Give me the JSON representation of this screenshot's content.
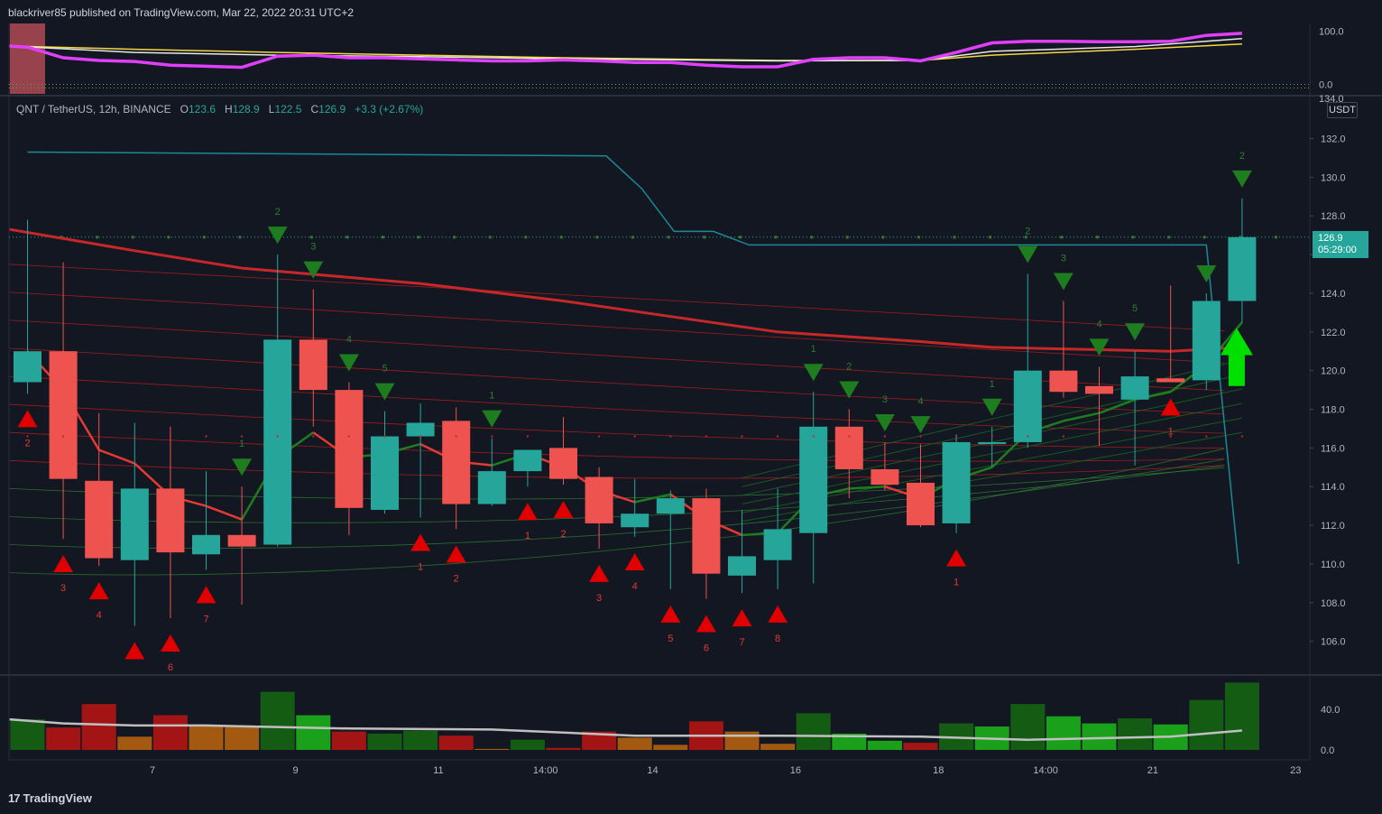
{
  "header": {
    "published": "blackriver85 published on TradingView.com, Mar 22, 2022 20:31 UTC+2"
  },
  "legend": {
    "symbol": "QNT / TetherUS, 12h, BINANCE",
    "o_label": "O",
    "o": "123.6",
    "h_label": "H",
    "h": "128.9",
    "l_label": "L",
    "l": "122.5",
    "c_label": "C",
    "c": "126.9",
    "change": "+3.3 (+2.67%)"
  },
  "currency_button": "USDT",
  "last_price": {
    "price": "126.9",
    "countdown": "05:29:00"
  },
  "branding": {
    "logo_text": "TradingView"
  },
  "colors": {
    "background": "#131722",
    "up": "#26a69a",
    "down": "#ef5350",
    "signal_up": "#1e7d1e",
    "signal_down": "#e00000"
  },
  "chart_data": {
    "type": "candlestick",
    "symbol": "QNT/USDT",
    "timeframe": "12h",
    "x_tick_labels": [
      {
        "i": 3.5,
        "label": "7"
      },
      {
        "i": 7.5,
        "label": "9"
      },
      {
        "i": 11.5,
        "label": "11"
      },
      {
        "i": 14.5,
        "label": "14:00"
      },
      {
        "i": 17.5,
        "label": "14"
      },
      {
        "i": 21.5,
        "label": "16"
      },
      {
        "i": 25.5,
        "label": "18"
      },
      {
        "i": 28.5,
        "label": "14:00"
      },
      {
        "i": 31.5,
        "label": "21"
      },
      {
        "i": 35.5,
        "label": "23"
      }
    ],
    "price_axis": {
      "ylim": [
        104.2,
        134.6
      ],
      "ticks": [
        "106.0",
        "108.0",
        "110.0",
        "112.0",
        "114.0",
        "116.0",
        "118.0",
        "120.0",
        "122.0",
        "124.0",
        "126.0",
        "128.0",
        "130.0",
        "132.0",
        "134.0"
      ]
    },
    "candles": [
      {
        "o": 119.4,
        "h": 127.8,
        "l": 118.8,
        "c": 121.0
      },
      {
        "o": 121.0,
        "h": 125.6,
        "l": 111.3,
        "c": 114.4
      },
      {
        "o": 114.3,
        "h": 117.8,
        "l": 109.9,
        "c": 110.3
      },
      {
        "o": 110.2,
        "h": 117.3,
        "l": 106.8,
        "c": 113.9
      },
      {
        "o": 113.9,
        "h": 117.1,
        "l": 107.2,
        "c": 110.6
      },
      {
        "o": 110.5,
        "h": 114.8,
        "l": 109.7,
        "c": 111.5
      },
      {
        "o": 111.5,
        "h": 114.0,
        "l": 107.9,
        "c": 110.9
      },
      {
        "o": 111.0,
        "h": 126.0,
        "l": 110.9,
        "c": 121.6
      },
      {
        "o": 121.6,
        "h": 124.2,
        "l": 117.1,
        "c": 119.0
      },
      {
        "o": 119.0,
        "h": 119.4,
        "l": 111.5,
        "c": 112.9
      },
      {
        "o": 112.8,
        "h": 117.9,
        "l": 112.6,
        "c": 116.6
      },
      {
        "o": 116.6,
        "h": 118.3,
        "l": 112.4,
        "c": 117.3
      },
      {
        "o": 117.4,
        "h": 118.1,
        "l": 111.8,
        "c": 113.1
      },
      {
        "o": 113.1,
        "h": 116.5,
        "l": 113.0,
        "c": 114.8
      },
      {
        "o": 114.8,
        "h": 115.9,
        "l": 114.0,
        "c": 115.9
      },
      {
        "o": 116.0,
        "h": 117.6,
        "l": 114.1,
        "c": 114.4
      },
      {
        "o": 114.5,
        "h": 115.0,
        "l": 110.8,
        "c": 112.1
      },
      {
        "o": 111.9,
        "h": 114.4,
        "l": 111.4,
        "c": 112.6
      },
      {
        "o": 112.6,
        "h": 113.8,
        "l": 108.7,
        "c": 113.4
      },
      {
        "o": 113.4,
        "h": 113.9,
        "l": 108.2,
        "c": 109.5
      },
      {
        "o": 109.4,
        "h": 112.8,
        "l": 108.5,
        "c": 110.4
      },
      {
        "o": 110.2,
        "h": 113.9,
        "l": 108.7,
        "c": 111.8
      },
      {
        "o": 111.6,
        "h": 118.9,
        "l": 109.0,
        "c": 117.1
      },
      {
        "o": 117.1,
        "h": 118.0,
        "l": 113.4,
        "c": 114.9
      },
      {
        "o": 114.9,
        "h": 116.3,
        "l": 113.8,
        "c": 114.1
      },
      {
        "o": 114.2,
        "h": 116.2,
        "l": 111.9,
        "c": 112.0
      },
      {
        "o": 112.1,
        "h": 116.7,
        "l": 111.6,
        "c": 116.3
      },
      {
        "o": 116.2,
        "h": 117.1,
        "l": 115.0,
        "c": 116.3
      },
      {
        "o": 116.3,
        "h": 125.0,
        "l": 116.0,
        "c": 120.0
      },
      {
        "o": 120.0,
        "h": 123.6,
        "l": 118.6,
        "c": 118.9
      },
      {
        "o": 119.2,
        "h": 120.2,
        "l": 116.1,
        "c": 118.8
      },
      {
        "o": 118.5,
        "h": 121.0,
        "l": 115.1,
        "c": 119.7
      },
      {
        "o": 119.6,
        "h": 124.4,
        "l": 119.4,
        "c": 119.4
      },
      {
        "o": 119.5,
        "h": 124.0,
        "l": 119.0,
        "c": 123.6
      },
      {
        "o": 123.6,
        "h": 128.9,
        "l": 122.5,
        "c": 126.9
      }
    ],
    "resistance_line": [
      {
        "i": 0,
        "v": 131.3
      },
      {
        "i": 16.2,
        "v": 131.1
      },
      {
        "i": 17.2,
        "v": 129.4
      },
      {
        "i": 18.1,
        "v": 127.2
      },
      {
        "i": 19.2,
        "v": 127.2
      },
      {
        "i": 20.2,
        "v": 126.5
      },
      {
        "i": 33.0,
        "v": 126.5
      },
      {
        "i": 33.9,
        "v": 110.0
      }
    ],
    "red_ma": [
      {
        "i": -0.5,
        "v": 127.3
      },
      {
        "i": 3,
        "v": 126.2
      },
      {
        "i": 6,
        "v": 125.3
      },
      {
        "i": 11,
        "v": 124.5
      },
      {
        "i": 15,
        "v": 123.6
      },
      {
        "i": 18,
        "v": 122.8
      },
      {
        "i": 21,
        "v": 122.0
      },
      {
        "i": 25,
        "v": 121.5
      },
      {
        "i": 27,
        "v": 121.2
      },
      {
        "i": 32,
        "v": 121.0
      },
      {
        "i": 34,
        "v": 121.2
      }
    ],
    "fast_ma": [
      {
        "i": 0,
        "v": 121.0
      },
      {
        "i": 1,
        "v": 119.0
      },
      {
        "i": 2,
        "v": 115.9
      },
      {
        "i": 3,
        "v": 115.2
      },
      {
        "i": 4,
        "v": 113.5
      },
      {
        "i": 5,
        "v": 113.0
      },
      {
        "i": 6,
        "v": 112.3
      },
      {
        "i": 7,
        "v": 115.5
      },
      {
        "i": 8,
        "v": 116.8
      },
      {
        "i": 9,
        "v": 115.5
      },
      {
        "i": 10,
        "v": 115.7
      },
      {
        "i": 11,
        "v": 116.2
      },
      {
        "i": 12,
        "v": 115.3
      },
      {
        "i": 13,
        "v": 115.1
      },
      {
        "i": 14,
        "v": 115.7
      },
      {
        "i": 15,
        "v": 115.0
      },
      {
        "i": 16,
        "v": 113.8
      },
      {
        "i": 17,
        "v": 113.2
      },
      {
        "i": 18,
        "v": 113.6
      },
      {
        "i": 19,
        "v": 112.3
      },
      {
        "i": 20,
        "v": 111.5
      },
      {
        "i": 21,
        "v": 111.6
      },
      {
        "i": 22,
        "v": 113.5
      },
      {
        "i": 23,
        "v": 113.9
      },
      {
        "i": 24,
        "v": 114.0
      },
      {
        "i": 25,
        "v": 113.4
      },
      {
        "i": 26,
        "v": 114.4
      },
      {
        "i": 27,
        "v": 115.0
      },
      {
        "i": 28,
        "v": 116.8
      },
      {
        "i": 29,
        "v": 117.4
      },
      {
        "i": 30,
        "v": 117.8
      },
      {
        "i": 31,
        "v": 118.5
      },
      {
        "i": 32,
        "v": 118.9
      },
      {
        "i": 33,
        "v": 120.3
      },
      {
        "i": 34,
        "v": 122.5
      }
    ],
    "buy_signals": [
      {
        "i": 0,
        "label": "2"
      },
      {
        "i": 1,
        "label": "3"
      },
      {
        "i": 2,
        "label": "4"
      },
      {
        "i": 3,
        "label": ""
      },
      {
        "i": 4,
        "label": "6"
      },
      {
        "i": 5,
        "label": "7"
      },
      {
        "i": 11,
        "label": "1"
      },
      {
        "i": 12,
        "label": "2"
      },
      {
        "i": 14,
        "label": "1"
      },
      {
        "i": 15,
        "label": "2"
      },
      {
        "i": 16,
        "label": "3"
      },
      {
        "i": 17,
        "label": "4"
      },
      {
        "i": 18,
        "label": "5"
      },
      {
        "i": 19,
        "label": "6"
      },
      {
        "i": 20,
        "label": "7"
      },
      {
        "i": 21,
        "label": "8"
      },
      {
        "i": 26,
        "label": "1"
      },
      {
        "i": 32,
        "label": "1"
      }
    ],
    "sell_signals": [
      {
        "i": 6,
        "label": "1"
      },
      {
        "i": 7,
        "label": "2"
      },
      {
        "i": 8,
        "label": "3"
      },
      {
        "i": 9,
        "label": "4"
      },
      {
        "i": 10,
        "label": "5"
      },
      {
        "i": 13,
        "label": "1"
      },
      {
        "i": 22,
        "label": "1"
      },
      {
        "i": 23,
        "label": "2"
      },
      {
        "i": 24,
        "label": "3"
      },
      {
        "i": 25,
        "label": "4"
      },
      {
        "i": 27,
        "label": "1"
      },
      {
        "i": 28,
        "label": "2"
      },
      {
        "i": 29,
        "label": "3"
      },
      {
        "i": 30,
        "label": "4"
      },
      {
        "i": 31,
        "label": "5"
      },
      {
        "i": 33,
        "label": ""
      },
      {
        "i": 34,
        "label": "2"
      }
    ],
    "oscillator": {
      "ticks": [
        "0.0",
        "100.0"
      ],
      "axis_top_label": "134.0",
      "magenta": [
        {
          "i": -0.5,
          "v": 72
        },
        {
          "i": 0,
          "v": 70
        },
        {
          "i": 1,
          "v": 50
        },
        {
          "i": 2,
          "v": 45
        },
        {
          "i": 3,
          "v": 43
        },
        {
          "i": 4,
          "v": 36
        },
        {
          "i": 5,
          "v": 34
        },
        {
          "i": 6,
          "v": 32
        },
        {
          "i": 7,
          "v": 53
        },
        {
          "i": 8,
          "v": 55
        },
        {
          "i": 9,
          "v": 50
        },
        {
          "i": 10,
          "v": 50
        },
        {
          "i": 11,
          "v": 48
        },
        {
          "i": 12,
          "v": 46
        },
        {
          "i": 13,
          "v": 44
        },
        {
          "i": 14,
          "v": 44
        },
        {
          "i": 15,
          "v": 46
        },
        {
          "i": 16,
          "v": 44
        },
        {
          "i": 17,
          "v": 41
        },
        {
          "i": 18,
          "v": 41
        },
        {
          "i": 19,
          "v": 36
        },
        {
          "i": 20,
          "v": 33
        },
        {
          "i": 21,
          "v": 33
        },
        {
          "i": 22,
          "v": 47
        },
        {
          "i": 23,
          "v": 50
        },
        {
          "i": 24,
          "v": 50
        },
        {
          "i": 25,
          "v": 44
        },
        {
          "i": 26,
          "v": 60
        },
        {
          "i": 27,
          "v": 78
        },
        {
          "i": 28,
          "v": 81
        },
        {
          "i": 29,
          "v": 81
        },
        {
          "i": 30,
          "v": 80
        },
        {
          "i": 31,
          "v": 80
        },
        {
          "i": 32,
          "v": 81
        },
        {
          "i": 33,
          "v": 92
        },
        {
          "i": 34,
          "v": 96
        }
      ],
      "white": [
        {
          "i": -0.5,
          "v": 72
        },
        {
          "i": 3,
          "v": 60
        },
        {
          "i": 7,
          "v": 55
        },
        {
          "i": 11,
          "v": 52
        },
        {
          "i": 15,
          "v": 48
        },
        {
          "i": 21,
          "v": 44
        },
        {
          "i": 25,
          "v": 45
        },
        {
          "i": 27,
          "v": 62
        },
        {
          "i": 31,
          "v": 71
        },
        {
          "i": 34,
          "v": 86
        }
      ],
      "yellow": [
        {
          "i": -0.5,
          "v": 72
        },
        {
          "i": 3,
          "v": 66
        },
        {
          "i": 7,
          "v": 60
        },
        {
          "i": 11,
          "v": 55
        },
        {
          "i": 15,
          "v": 50
        },
        {
          "i": 21,
          "v": 45
        },
        {
          "i": 25,
          "v": 45
        },
        {
          "i": 27,
          "v": 55
        },
        {
          "i": 31,
          "v": 66
        },
        {
          "i": 34,
          "v": 76
        }
      ]
    },
    "volume": {
      "ticks": [
        "0.0",
        "40.0"
      ],
      "values": [
        30,
        22,
        45,
        13,
        34,
        23,
        23,
        57,
        34,
        18,
        16,
        19,
        14,
        1,
        10,
        2,
        18,
        12,
        5,
        28,
        18,
        6,
        36,
        16,
        9,
        7,
        26,
        23,
        45,
        33,
        26,
        31,
        25,
        49,
        66
      ],
      "colors": [
        "dg",
        "dr",
        "dr",
        "or",
        "dr",
        "or",
        "or",
        "dg",
        "lg",
        "dr",
        "dg",
        "dg",
        "dr",
        "or",
        "dg",
        "dr",
        "dr",
        "or",
        "or",
        "dr",
        "or",
        "or",
        "dg",
        "lg",
        "lg",
        "dr",
        "dg",
        "lg",
        "dg",
        "lg",
        "lg",
        "dg",
        "lg",
        "dg",
        "dg"
      ],
      "ma": [
        {
          "i": -0.5,
          "v": 30
        },
        {
          "i": 1,
          "v": 26
        },
        {
          "i": 3,
          "v": 24
        },
        {
          "i": 5,
          "v": 24
        },
        {
          "i": 9,
          "v": 21
        },
        {
          "i": 13,
          "v": 20
        },
        {
          "i": 17,
          "v": 14
        },
        {
          "i": 21,
          "v": 14
        },
        {
          "i": 25,
          "v": 13
        },
        {
          "i": 28,
          "v": 10
        },
        {
          "i": 32,
          "v": 13
        },
        {
          "i": 34,
          "v": 19
        }
      ]
    }
  }
}
